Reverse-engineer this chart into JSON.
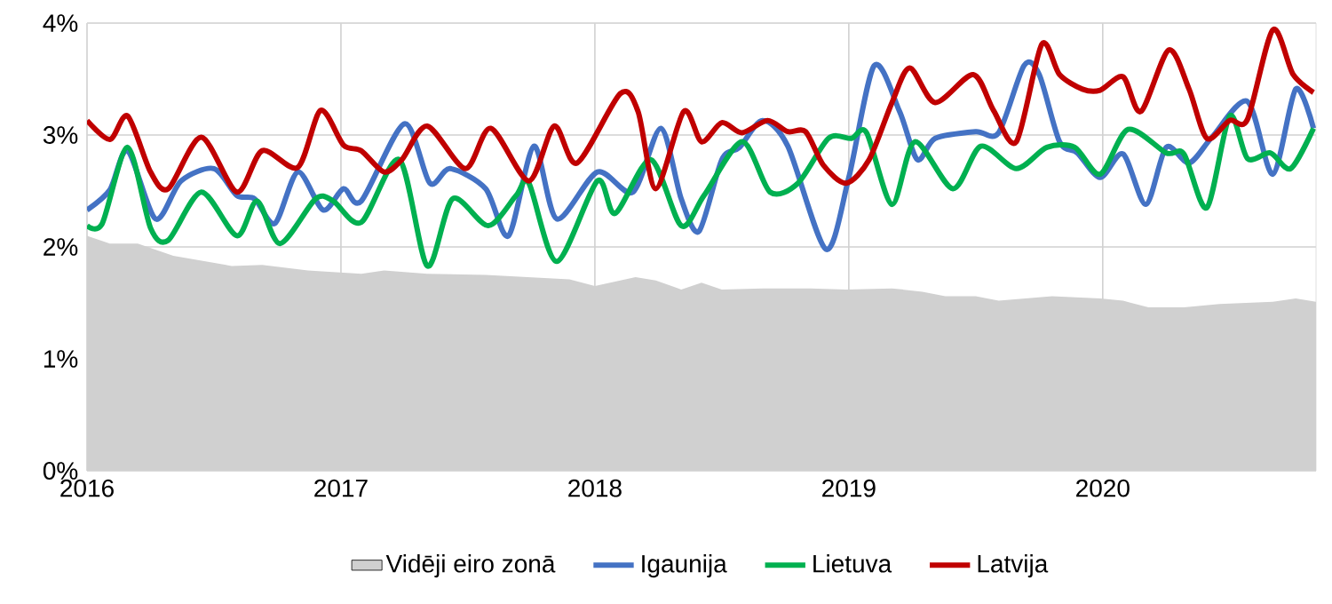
{
  "chart_data": {
    "type": "line",
    "xlim": [
      2016,
      2020.84
    ],
    "xticks": [
      2016,
      2017,
      2018,
      2019,
      2020
    ],
    "ylim": [
      0,
      4
    ],
    "yticks": [
      {
        "value": 0,
        "label": "0%"
      },
      {
        "value": 1,
        "label": "1%"
      },
      {
        "value": 2,
        "label": "2%"
      },
      {
        "value": 3,
        "label": "3%"
      },
      {
        "value": 4,
        "label": "4%"
      }
    ],
    "grid": true,
    "legend": "bottom",
    "marker": "none",
    "line_style": "solid",
    "series": [
      {
        "name": "Vidēji eiro zonā",
        "type": "area",
        "color": "#d0d0d0",
        "x": [
          2016.0,
          2016.09,
          2016.2,
          2016.34,
          2016.57,
          2016.69,
          2016.87,
          2017.08,
          2017.17,
          2017.34,
          2017.57,
          2017.9,
          2018.0,
          2018.16,
          2018.24,
          2018.34,
          2018.42,
          2018.5,
          2018.66,
          2018.85,
          2018.99,
          2019.17,
          2019.29,
          2019.38,
          2019.5,
          2019.59,
          2019.8,
          2019.99,
          2020.08,
          2020.18,
          2020.32,
          2020.46,
          2020.67,
          2020.76,
          2020.84
        ],
        "values": [
          2.1,
          2.03,
          2.03,
          1.92,
          1.83,
          1.84,
          1.79,
          1.76,
          1.79,
          1.76,
          1.75,
          1.71,
          1.65,
          1.73,
          1.7,
          1.62,
          1.68,
          1.62,
          1.63,
          1.63,
          1.62,
          1.63,
          1.6,
          1.56,
          1.56,
          1.52,
          1.56,
          1.54,
          1.52,
          1.46,
          1.46,
          1.49,
          1.51,
          1.54,
          1.51
        ]
      },
      {
        "name": "Igaunija",
        "color": "#4472c4",
        "x": [
          2016.0,
          2016.09,
          2016.16,
          2016.27,
          2016.37,
          2016.5,
          2016.59,
          2016.66,
          2016.74,
          2016.83,
          2016.93,
          2017.01,
          2017.08,
          2017.25,
          2017.35,
          2017.43,
          2017.57,
          2017.66,
          2017.76,
          2017.85,
          2018.01,
          2018.15,
          2018.26,
          2018.34,
          2018.41,
          2018.5,
          2018.57,
          2018.66,
          2018.76,
          2018.91,
          2019.0,
          2019.1,
          2019.2,
          2019.27,
          2019.34,
          2019.5,
          2019.59,
          2019.69,
          2019.75,
          2019.83,
          2019.9,
          2019.99,
          2020.08,
          2020.17,
          2020.25,
          2020.34,
          2020.43,
          2020.57,
          2020.67,
          2020.76,
          2020.83
        ],
        "values": [
          2.33,
          2.51,
          2.86,
          2.25,
          2.59,
          2.7,
          2.46,
          2.43,
          2.21,
          2.67,
          2.33,
          2.52,
          2.41,
          3.1,
          2.57,
          2.7,
          2.52,
          2.1,
          2.9,
          2.25,
          2.67,
          2.49,
          3.06,
          2.43,
          2.14,
          2.78,
          2.89,
          3.13,
          2.9,
          1.98,
          2.62,
          3.62,
          3.21,
          2.78,
          2.97,
          3.03,
          3.02,
          3.62,
          3.54,
          2.94,
          2.84,
          2.62,
          2.83,
          2.38,
          2.89,
          2.75,
          2.98,
          3.3,
          2.65,
          3.41,
          3.06
        ]
      },
      {
        "name": "Lietuva",
        "color": "#00b050",
        "x": [
          2016.0,
          2016.06,
          2016.16,
          2016.25,
          2016.32,
          2016.45,
          2016.59,
          2016.67,
          2016.76,
          2016.9,
          2016.97,
          2017.08,
          2017.23,
          2017.34,
          2017.44,
          2017.58,
          2017.69,
          2017.74,
          2017.85,
          2018.01,
          2018.08,
          2018.22,
          2018.34,
          2018.43,
          2018.58,
          2018.69,
          2018.8,
          2018.92,
          2019.01,
          2019.07,
          2019.17,
          2019.26,
          2019.41,
          2019.52,
          2019.66,
          2019.78,
          2019.89,
          2019.99,
          2020.1,
          2020.25,
          2020.32,
          2020.41,
          2020.5,
          2020.57,
          2020.66,
          2020.74,
          2020.83
        ],
        "values": [
          2.19,
          2.21,
          2.89,
          2.17,
          2.06,
          2.49,
          2.1,
          2.41,
          2.03,
          2.43,
          2.41,
          2.22,
          2.78,
          1.83,
          2.43,
          2.19,
          2.46,
          2.57,
          1.87,
          2.59,
          2.3,
          2.78,
          2.19,
          2.46,
          2.94,
          2.49,
          2.57,
          2.97,
          2.97,
          3.02,
          2.38,
          2.94,
          2.52,
          2.9,
          2.7,
          2.89,
          2.89,
          2.65,
          3.05,
          2.84,
          2.83,
          2.35,
          3.17,
          2.79,
          2.84,
          2.7,
          3.06
        ]
      },
      {
        "name": "Latvija",
        "color": "#c00000",
        "x": [
          2016.0,
          2016.09,
          2016.16,
          2016.25,
          2016.32,
          2016.45,
          2016.59,
          2016.69,
          2016.83,
          2016.92,
          2017.01,
          2017.08,
          2017.17,
          2017.24,
          2017.34,
          2017.49,
          2017.59,
          2017.74,
          2017.84,
          2017.93,
          2018.1,
          2018.17,
          2018.24,
          2018.35,
          2018.42,
          2018.5,
          2018.58,
          2018.68,
          2018.76,
          2018.83,
          2018.9,
          2018.99,
          2019.08,
          2019.17,
          2019.24,
          2019.34,
          2019.49,
          2019.57,
          2019.66,
          2019.76,
          2019.83,
          2019.92,
          2019.99,
          2020.08,
          2020.15,
          2020.26,
          2020.34,
          2020.41,
          2020.5,
          2020.57,
          2020.67,
          2020.75,
          2020.83
        ],
        "values": [
          3.13,
          2.96,
          3.17,
          2.67,
          2.52,
          2.98,
          2.49,
          2.86,
          2.71,
          3.22,
          2.91,
          2.86,
          2.67,
          2.78,
          3.08,
          2.7,
          3.06,
          2.59,
          3.08,
          2.75,
          3.37,
          3.21,
          2.52,
          3.21,
          2.94,
          3.11,
          3.02,
          3.13,
          3.03,
          3.03,
          2.73,
          2.57,
          2.78,
          3.29,
          3.6,
          3.29,
          3.54,
          3.22,
          2.94,
          3.81,
          3.54,
          3.41,
          3.4,
          3.52,
          3.21,
          3.76,
          3.41,
          2.97,
          3.13,
          3.14,
          3.94,
          3.54,
          3.38
        ]
      }
    ]
  }
}
